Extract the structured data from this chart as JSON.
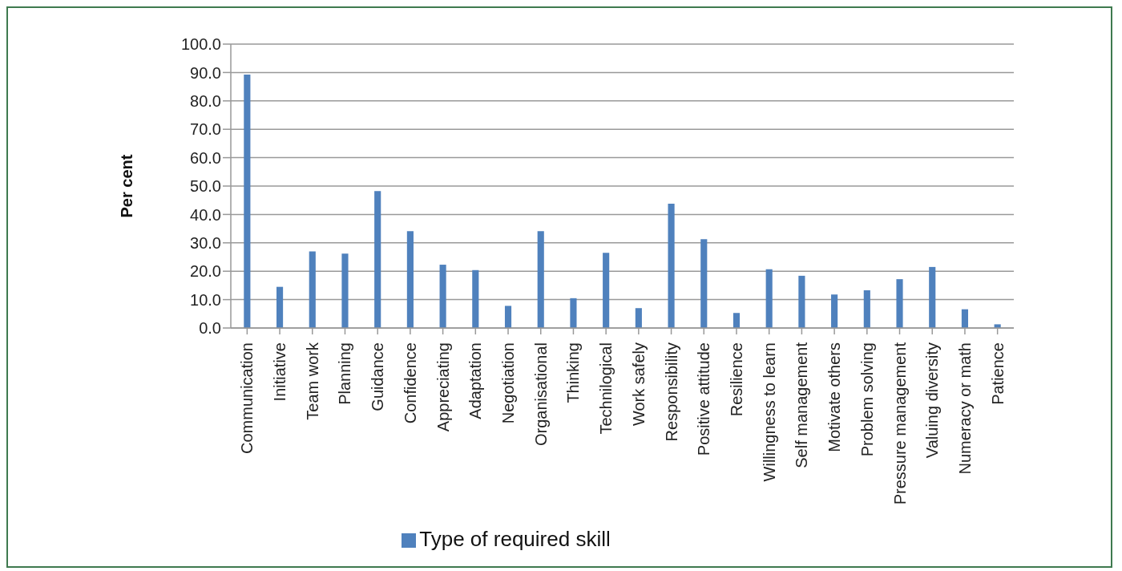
{
  "chart_data": {
    "type": "bar",
    "ylabel": "Per cent",
    "categories": [
      "Communication",
      "Initiative",
      "Team work",
      "Planning",
      "Guidance",
      "Confidence",
      "Appreciating",
      "Adaptation",
      "Negotiation",
      "Organisational",
      "Thinking",
      "Technilogical",
      "Work safely",
      "Responsibility",
      "Positive attitude",
      "Resilience",
      "Willingness to learn",
      "Self management",
      "Motivate others",
      "Problem solving",
      "Pressure management",
      "Valuing diversity",
      "Numeracy or math",
      "Patience"
    ],
    "series": [
      {
        "name": "Type of required skill",
        "color": "#4f81bd",
        "values": [
          89.3,
          14.5,
          27.0,
          26.2,
          48.2,
          34.1,
          22.3,
          20.4,
          7.8,
          34.1,
          10.5,
          26.5,
          7.0,
          43.8,
          31.3,
          5.3,
          20.7,
          18.4,
          11.8,
          13.3,
          17.2,
          21.5,
          6.6,
          1.3
        ]
      }
    ],
    "ylim": [
      0,
      100
    ],
    "yticks": [
      {
        "value": 0,
        "label": "0.0"
      },
      {
        "value": 10,
        "label": "10.0"
      },
      {
        "value": 20,
        "label": "20.0"
      },
      {
        "value": 30,
        "label": "30.0"
      },
      {
        "value": 40,
        "label": "40.0"
      },
      {
        "value": 50,
        "label": "50.0"
      },
      {
        "value": 60,
        "label": "60.0"
      },
      {
        "value": 70,
        "label": "70.0"
      },
      {
        "value": 80,
        "label": "80.0"
      },
      {
        "value": 90,
        "label": "90.0"
      },
      {
        "value": 100,
        "label": "100.0"
      }
    ],
    "grid": "y",
    "legend": "bottom"
  }
}
